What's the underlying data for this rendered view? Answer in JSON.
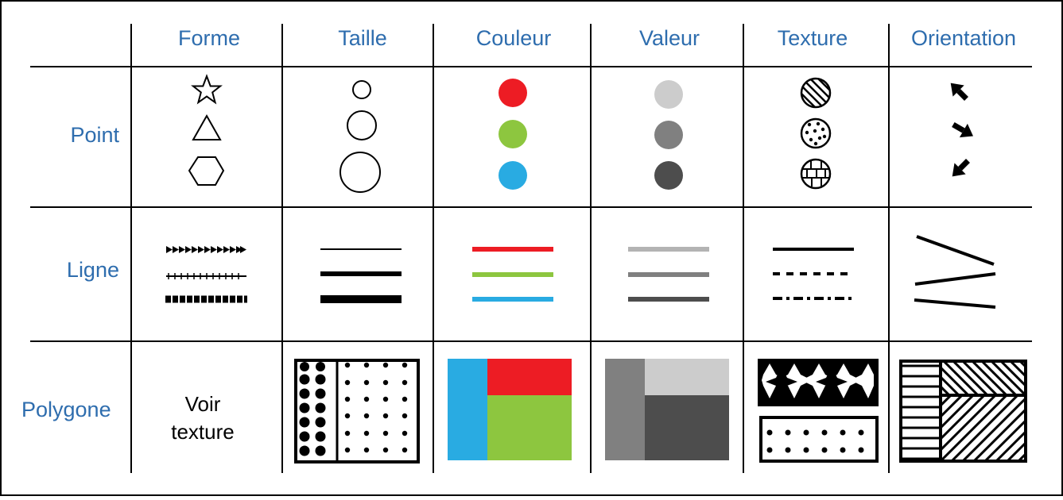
{
  "columns": [
    "Forme",
    "Taille",
    "Couleur",
    "Valeur",
    "Texture",
    "Orientation"
  ],
  "rows": [
    "Point",
    "Ligne",
    "Polygone"
  ],
  "polygon_shape_note": {
    "line1": "Voir",
    "line2": "texture"
  },
  "colors": {
    "label_blue": "#2E6DAE",
    "red": "#ED1C24",
    "green": "#8DC63F",
    "blue": "#29ABE2",
    "value_light": "#CCCCCC",
    "value_mid": "#808080",
    "value_dark": "#4D4D4D"
  }
}
